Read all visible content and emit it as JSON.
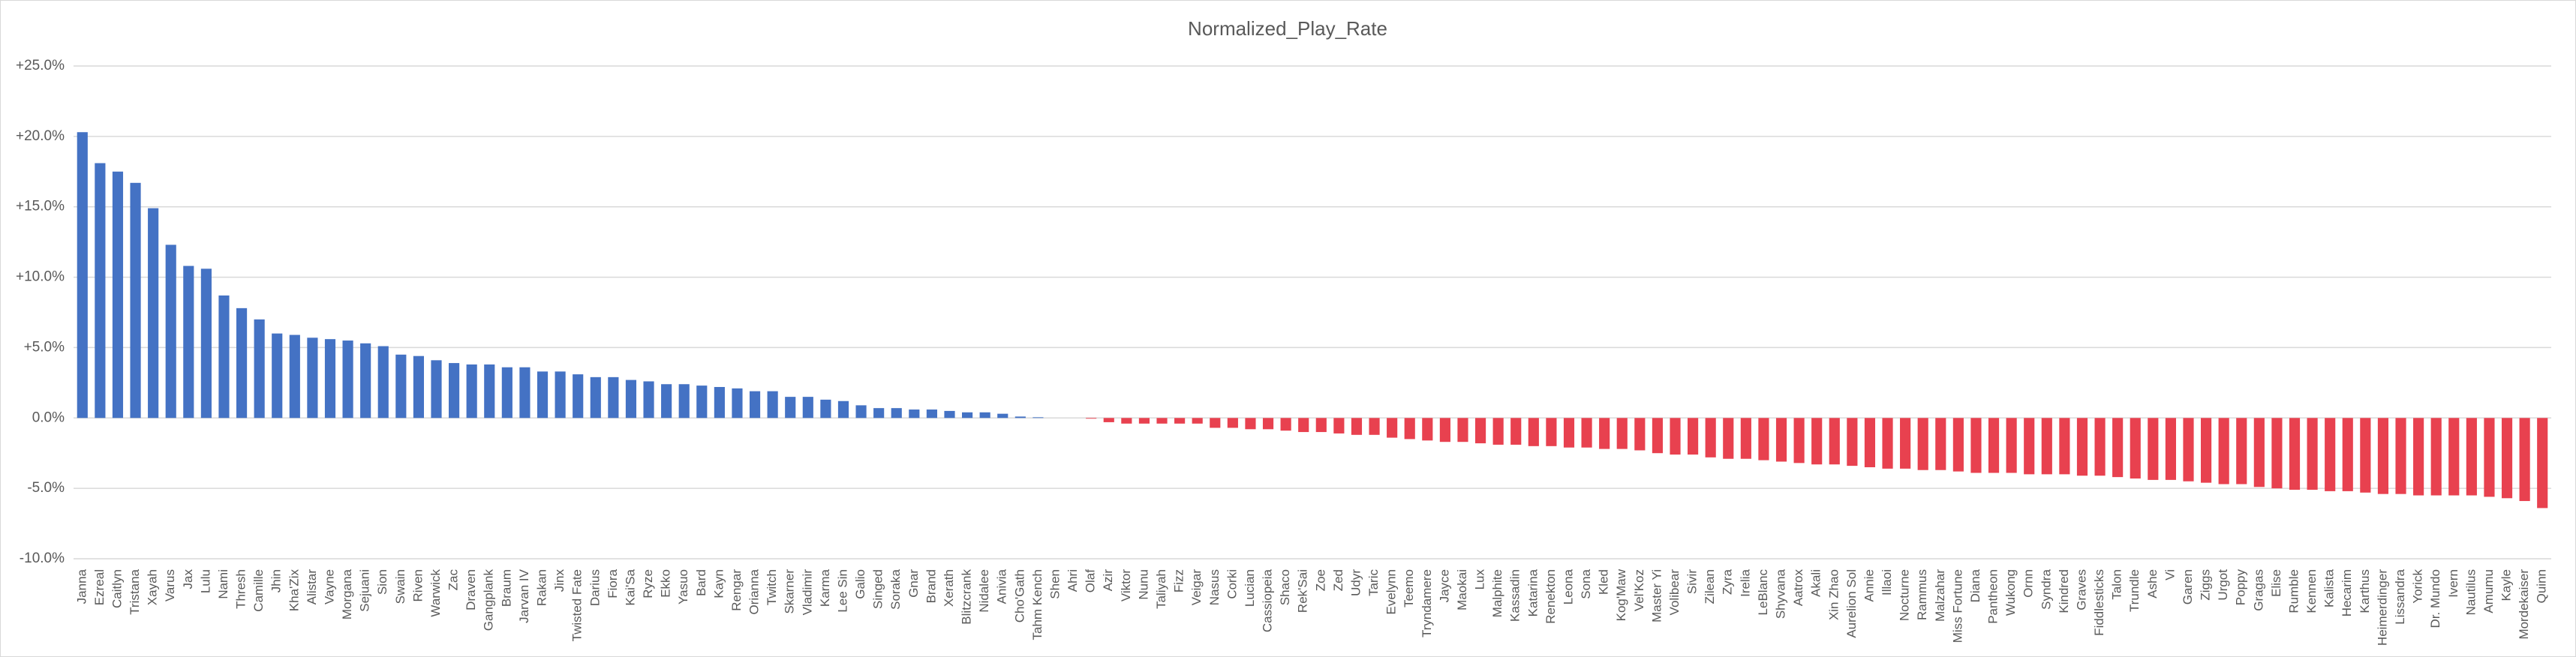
{
  "chart_data": {
    "type": "bar",
    "title": "Normalized_Play_Rate",
    "categories": [
      "Janna",
      "Ezreal",
      "Caitlyn",
      "Tristana",
      "Xayah",
      "Varus",
      "Jax",
      "Lulu",
      "Nami",
      "Thresh",
      "Camille",
      "Jhin",
      "Kha'Zix",
      "Alistar",
      "Vayne",
      "Morgana",
      "Sejuani",
      "Sion",
      "Swain",
      "Riven",
      "Warwick",
      "Zac",
      "Draven",
      "Gangplank",
      "Braum",
      "Jarvan IV",
      "Rakan",
      "Jinx",
      "Twisted Fate",
      "Darius",
      "Fiora",
      "Kai'Sa",
      "Ryze",
      "Ekko",
      "Yasuo",
      "Bard",
      "Kayn",
      "Rengar",
      "Orianna",
      "Twitch",
      "Skarner",
      "Vladimir",
      "Karma",
      "Lee Sin",
      "Galio",
      "Singed",
      "Soraka",
      "Gnar",
      "Brand",
      "Xerath",
      "Blitzcrank",
      "Nidalee",
      "Anivia",
      "Cho'Gath",
      "Tahm Kench",
      "Shen",
      "Ahri",
      "Olaf",
      "Azir",
      "Viktor",
      "Nunu",
      "Taliyah",
      "Fizz",
      "Veigar",
      "Nasus",
      "Corki",
      "Lucian",
      "Cassiopeia",
      "Shaco",
      "Rek'Sai",
      "Zoe",
      "Zed",
      "Udyr",
      "Taric",
      "Evelynn",
      "Teemo",
      "Tryndamere",
      "Jayce",
      "Maokai",
      "Lux",
      "Malphite",
      "Kassadin",
      "Katarina",
      "Renekton",
      "Leona",
      "Sona",
      "Kled",
      "Kog'Maw",
      "Vel'Koz",
      "Master Yi",
      "Volibear",
      "Sivir",
      "Zilean",
      "Zyra",
      "Irelia",
      "LeBlanc",
      "Shyvana",
      "Aatrox",
      "Akali",
      "Xin Zhao",
      "Aurelion Sol",
      "Annie",
      "Illaoi",
      "Nocturne",
      "Rammus",
      "Malzahar",
      "Miss Fortune",
      "Diana",
      "Pantheon",
      "Wukong",
      "Ornn",
      "Syndra",
      "Kindred",
      "Graves",
      "Fiddlesticks",
      "Talon",
      "Trundle",
      "Ashe",
      "Vi",
      "Garen",
      "Ziggs",
      "Urgot",
      "Poppy",
      "Gragas",
      "Elise",
      "Rumble",
      "Kennen",
      "Kalista",
      "Hecarim",
      "Karthus",
      "Heimerdinger",
      "Lissandra",
      "Yorick",
      "Dr. Mundo",
      "Ivern",
      "Nautilus",
      "Amumu",
      "Kayle",
      "Mordekaiser",
      "Quinn"
    ],
    "values": [
      20.3,
      18.1,
      17.5,
      16.7,
      14.9,
      12.3,
      10.8,
      10.6,
      8.7,
      7.8,
      7.0,
      6.0,
      5.9,
      5.7,
      5.6,
      5.5,
      5.3,
      5.1,
      4.5,
      4.4,
      4.1,
      3.9,
      3.8,
      3.8,
      3.6,
      3.6,
      3.3,
      3.3,
      3.1,
      2.9,
      2.9,
      2.7,
      2.6,
      2.4,
      2.4,
      2.3,
      2.2,
      2.1,
      1.9,
      1.9,
      1.5,
      1.5,
      1.3,
      1.2,
      0.9,
      0.7,
      0.7,
      0.6,
      0.6,
      0.5,
      0.4,
      0.4,
      0.3,
      0.1,
      0.05,
      0,
      0,
      -0.05,
      -0.3,
      -0.4,
      -0.4,
      -0.4,
      -0.4,
      -0.4,
      -0.7,
      -0.7,
      -0.8,
      -0.8,
      -0.9,
      -1.0,
      -1.0,
      -1.1,
      -1.2,
      -1.2,
      -1.4,
      -1.5,
      -1.6,
      -1.7,
      -1.7,
      -1.8,
      -1.9,
      -1.9,
      -2.0,
      -2.0,
      -2.1,
      -2.1,
      -2.2,
      -2.2,
      -2.3,
      -2.5,
      -2.6,
      -2.6,
      -2.8,
      -2.9,
      -2.9,
      -3.0,
      -3.1,
      -3.2,
      -3.3,
      -3.3,
      -3.4,
      -3.5,
      -3.6,
      -3.6,
      -3.7,
      -3.7,
      -3.8,
      -3.9,
      -3.9,
      -3.9,
      -4.0,
      -4.0,
      -4.0,
      -4.1,
      -4.1,
      -4.2,
      -4.3,
      -4.4,
      -4.4,
      -4.5,
      -4.6,
      -4.7,
      -4.7,
      -4.9,
      -5.0,
      -5.1,
      -5.1,
      -5.2,
      -5.2,
      -5.3,
      -5.4,
      -5.4,
      -5.5,
      -5.5,
      -5.5,
      -5.5,
      -5.6,
      -5.7,
      -5.9,
      -6.4
    ],
    "positive_color": "#4472c4",
    "negative_color": "#e8414f",
    "ylim": [
      -10,
      25
    ],
    "yticks": [
      {
        "value": 25,
        "label": "+25.0%"
      },
      {
        "value": 20,
        "label": "+20.0%"
      },
      {
        "value": 15,
        "label": "+15.0%"
      },
      {
        "value": 10,
        "label": "+10.0%"
      },
      {
        "value": 5,
        "label": "+5.0%"
      },
      {
        "value": 0,
        "label": "0.0%"
      },
      {
        "value": -5,
        "label": "-5.0%"
      },
      {
        "value": -10,
        "label": "-10.0%"
      }
    ],
    "grid": true
  }
}
